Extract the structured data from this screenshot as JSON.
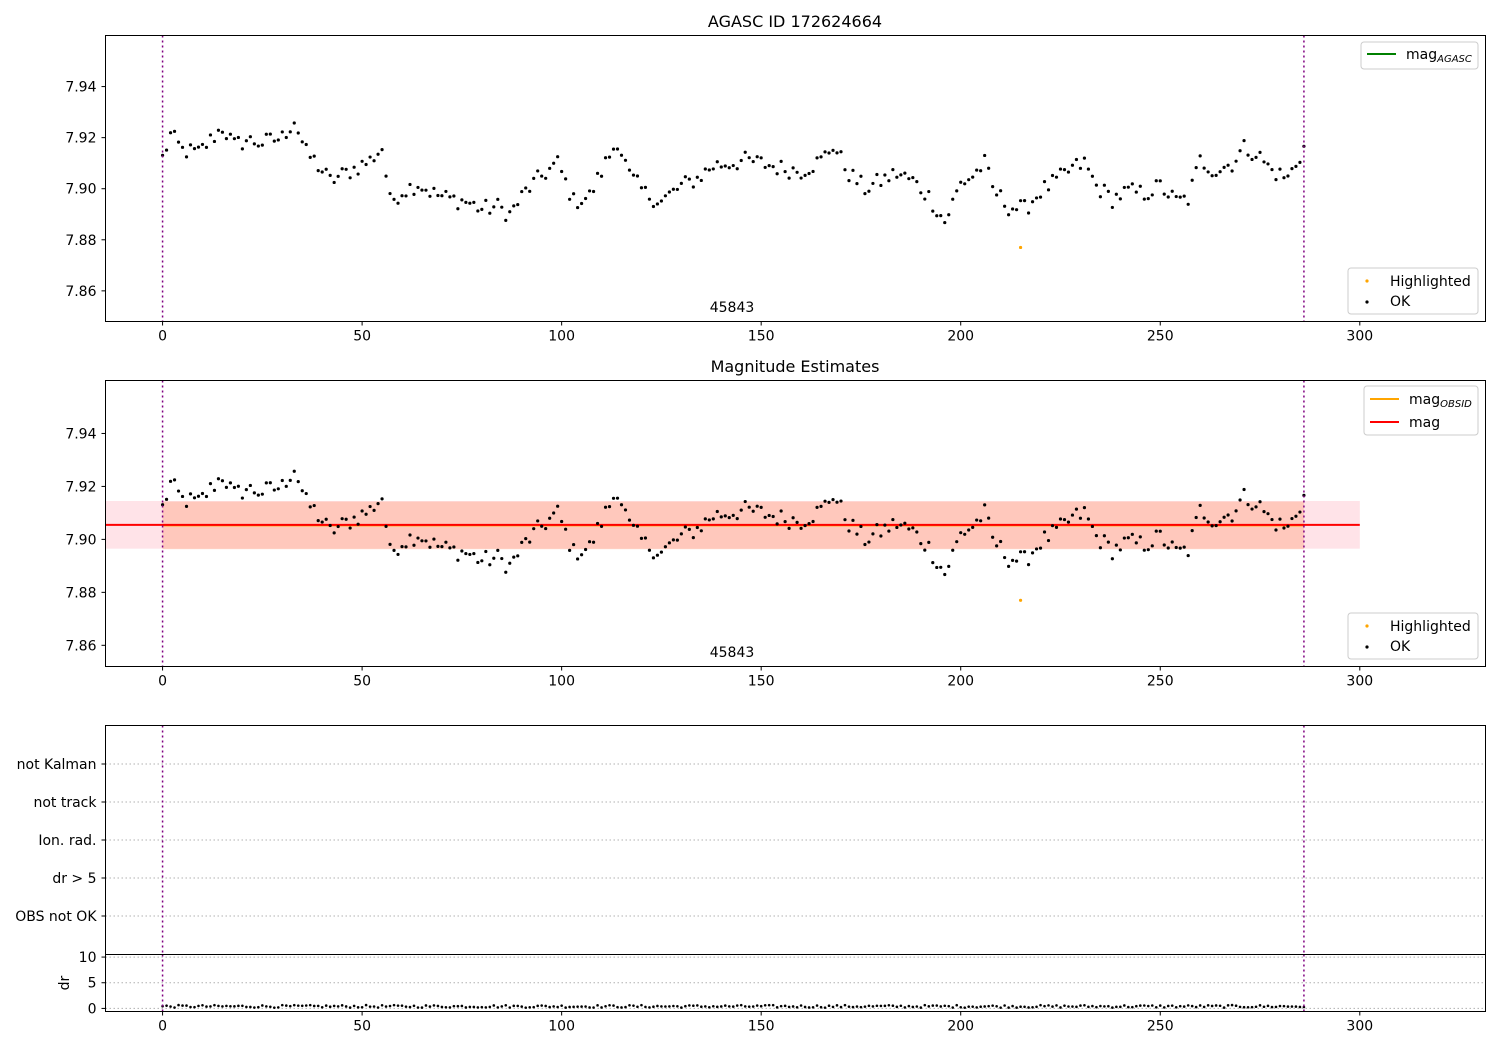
{
  "colors": {
    "ok": "#000000",
    "highlighted": "#ffa500",
    "mag_agasc": "#008000",
    "mag_obsid": "#ffa500",
    "mag": "#ff0000",
    "obs_line": "#800080",
    "band_mag": "#ffc0cb",
    "band_obsid": "#ffa07a"
  },
  "chart_data": [
    {
      "type": "scatter",
      "title": "AGASC ID 172624664",
      "xlim": [
        -14.3,
        331.5
      ],
      "ylim": [
        7.848,
        7.96
      ],
      "xticks": [
        "0",
        "50",
        "100",
        "150",
        "200",
        "250",
        "300"
      ],
      "yticks": [
        "7.86",
        "7.88",
        "7.90",
        "7.92",
        "7.94"
      ],
      "annotation": "45843",
      "legend_lines": [
        {
          "name": "mag",
          "sub": "AGASC"
        }
      ],
      "legend_points": [
        "Highlighted",
        "OK"
      ],
      "obs_boundaries": [
        0,
        286
      ],
      "highlighted_points": [
        {
          "x": 215,
          "y": 7.877
        }
      ],
      "seed_points": [
        [
          0,
          7.912
        ],
        [
          2,
          7.921
        ],
        [
          5,
          7.915
        ],
        [
          9,
          7.914
        ],
        [
          15,
          7.924
        ],
        [
          18,
          7.917
        ],
        [
          21,
          7.919
        ],
        [
          25,
          7.918
        ],
        [
          30,
          7.92
        ],
        [
          33,
          7.927
        ],
        [
          36,
          7.914
        ],
        [
          38,
          7.911
        ],
        [
          42,
          7.903
        ],
        [
          47,
          7.907
        ],
        [
          52,
          7.911
        ],
        [
          55,
          7.916
        ],
        [
          57,
          7.895
        ],
        [
          60,
          7.899
        ],
        [
          64,
          7.902
        ],
        [
          68,
          7.898
        ],
        [
          72,
          7.896
        ],
        [
          76,
          7.895
        ],
        [
          80,
          7.892
        ],
        [
          84,
          7.893
        ],
        [
          87,
          7.89
        ],
        [
          91,
          7.899
        ],
        [
          95,
          7.905
        ],
        [
          99,
          7.91
        ],
        [
          103,
          7.895
        ],
        [
          107,
          7.897
        ],
        [
          111,
          7.91
        ],
        [
          114,
          7.919
        ],
        [
          117,
          7.905
        ],
        [
          121,
          7.898
        ],
        [
          125,
          7.895
        ],
        [
          130,
          7.901
        ],
        [
          134,
          7.904
        ],
        [
          138,
          7.909
        ],
        [
          142,
          7.91
        ],
        [
          146,
          7.911
        ],
        [
          150,
          7.91
        ],
        [
          155,
          7.908
        ],
        [
          160,
          7.907
        ],
        [
          165,
          7.911
        ],
        [
          168,
          7.917
        ],
        [
          172,
          7.906
        ],
        [
          176,
          7.9
        ],
        [
          180,
          7.903
        ],
        [
          184,
          7.906
        ],
        [
          188,
          7.903
        ],
        [
          192,
          7.897
        ],
        [
          196,
          7.887
        ],
        [
          200,
          7.902
        ],
        [
          203,
          7.905
        ],
        [
          206,
          7.91
        ],
        [
          208,
          7.9
        ],
        [
          212,
          7.893
        ],
        [
          216,
          7.892
        ],
        [
          220,
          7.899
        ],
        [
          224,
          7.903
        ],
        [
          228,
          7.908
        ],
        [
          231,
          7.91
        ],
        [
          234,
          7.901
        ],
        [
          238,
          7.896
        ],
        [
          242,
          7.899
        ],
        [
          246,
          7.898
        ],
        [
          250,
          7.901
        ],
        [
          254,
          7.895
        ],
        [
          257,
          7.896
        ],
        [
          260,
          7.911
        ],
        [
          264,
          7.907
        ],
        [
          268,
          7.91
        ],
        [
          271,
          7.916
        ],
        [
          274,
          7.914
        ],
        [
          278,
          7.907
        ],
        [
          282,
          7.904
        ],
        [
          284,
          7.91
        ],
        [
          286,
          7.916
        ]
      ]
    },
    {
      "type": "scatter",
      "title": "Magnitude Estimates",
      "xlim": [
        -14.3,
        331.5
      ],
      "ylim": [
        7.852,
        7.96
      ],
      "xticks": [
        "0",
        "50",
        "100",
        "150",
        "200",
        "250",
        "300"
      ],
      "yticks": [
        "7.86",
        "7.88",
        "7.90",
        "7.92",
        "7.94"
      ],
      "annotation": "45843",
      "legend_lines": [
        {
          "name": "mag",
          "sub": "OBSID"
        },
        {
          "name": "mag",
          "sub": ""
        }
      ],
      "legend_points": [
        "Highlighted",
        "OK"
      ],
      "mag_line": {
        "x": [
          -14.3,
          300
        ],
        "y": 7.9055
      },
      "mag_band": {
        "x": [
          -14.3,
          300
        ],
        "y": [
          7.8965,
          7.9145
        ]
      },
      "obsid_line": {
        "x": [
          0,
          286
        ],
        "y": 7.9053
      },
      "obsid_band": {
        "x": [
          0,
          286
        ],
        "y": [
          7.8963,
          7.9143
        ]
      }
    },
    {
      "type": "scatter",
      "title": "",
      "xlim": [
        -14.3,
        331.5
      ],
      "categories": [
        "not Kalman",
        "not track",
        "Ion. rad.",
        "dr > 5",
        "OBS not OK"
      ],
      "flag_points": []
    },
    {
      "type": "scatter",
      "title": "",
      "ylabel": "dr",
      "xlim": [
        -14.3,
        331.5
      ],
      "ylim": [
        -0.6,
        10.5
      ],
      "xticks": [
        "0",
        "50",
        "100",
        "150",
        "200",
        "250",
        "300"
      ],
      "yticks": [
        "0",
        "5",
        "10"
      ],
      "dr_level": 0.4
    }
  ]
}
